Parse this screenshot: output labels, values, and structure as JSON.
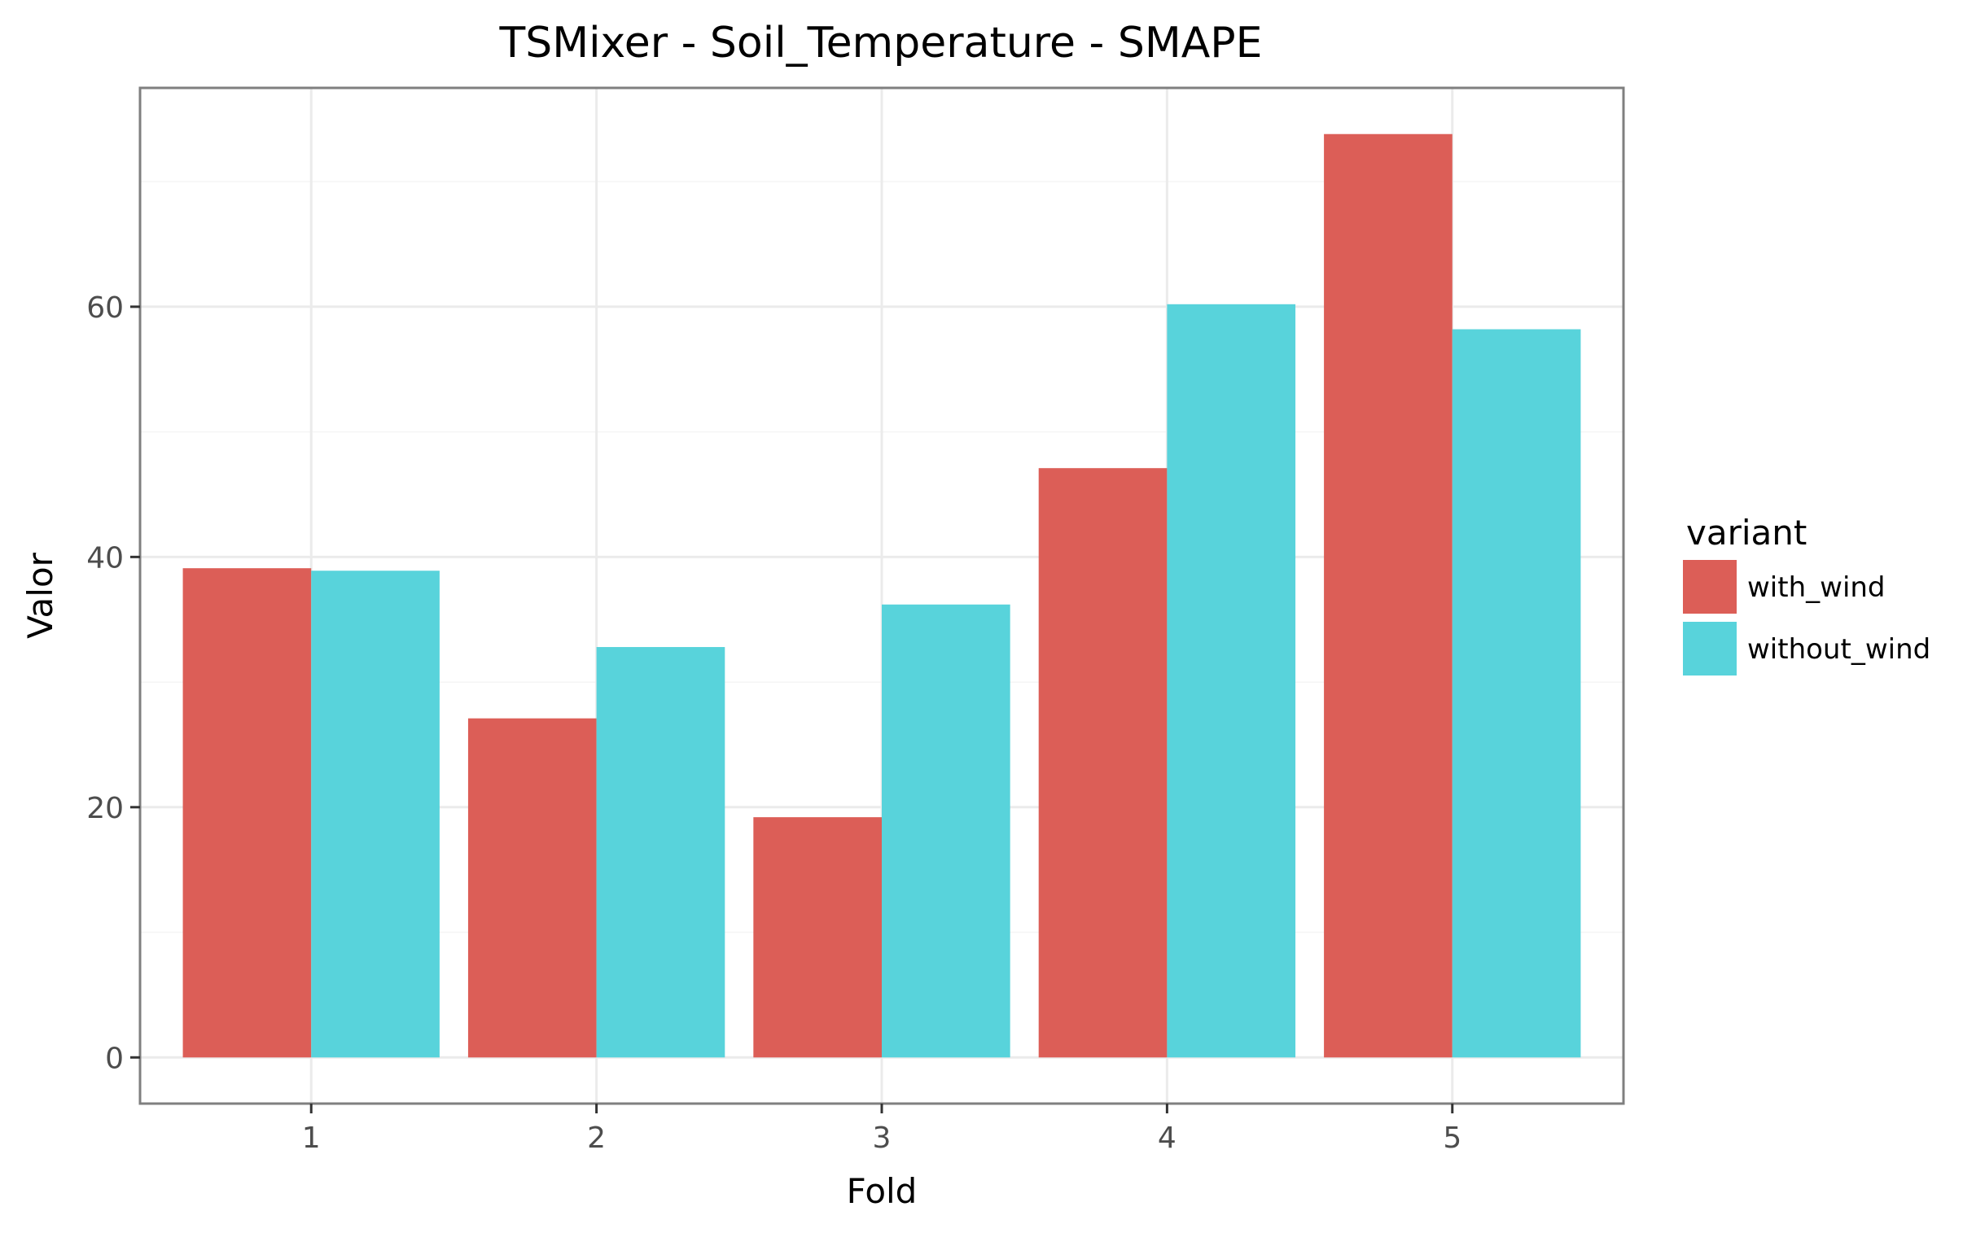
{
  "chart_data": {
    "type": "bar",
    "title": "TSMixer - Soil_Temperature - SMAPE",
    "xlabel": "Fold",
    "ylabel": "Valor",
    "categories": [
      "1",
      "2",
      "3",
      "4",
      "5"
    ],
    "series": [
      {
        "name": "with_wind",
        "color": "#DC5E57",
        "values": [
          39.1,
          27.1,
          19.2,
          47.1,
          73.8
        ]
      },
      {
        "name": "without_wind",
        "color": "#58D3DB",
        "values": [
          38.9,
          32.8,
          36.2,
          60.2,
          58.2
        ]
      }
    ],
    "ylim": [
      -3.69,
      77.49
    ],
    "yticks": [
      0,
      20,
      40,
      60
    ],
    "ytick_labels": [
      "0",
      "20",
      "40",
      "60"
    ],
    "grid": true,
    "legend": {
      "title": "variant",
      "position": "right",
      "entries": [
        "with_wind",
        "without_wind"
      ]
    },
    "colors": {
      "panel_border": "#7f7f7f",
      "grid_major": "#EBEBEB",
      "grid_minor": "#F5F5F5"
    }
  }
}
